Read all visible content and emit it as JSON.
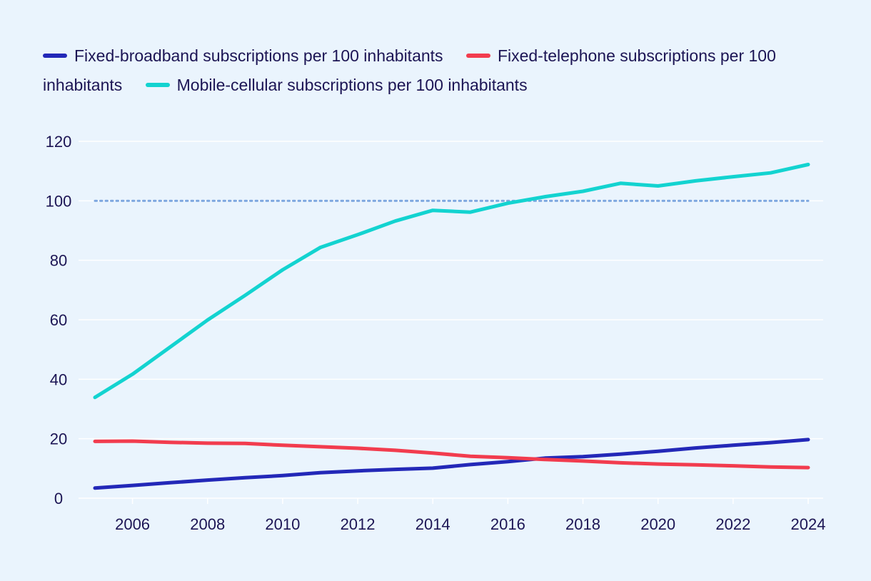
{
  "chart_data": {
    "type": "line",
    "title": "",
    "xlabel": "",
    "ylabel": "",
    "x": [
      2005,
      2006,
      2007,
      2008,
      2009,
      2010,
      2011,
      2012,
      2013,
      2014,
      2015,
      2016,
      2017,
      2018,
      2019,
      2020,
      2021,
      2022,
      2023,
      2024
    ],
    "xticks": [
      2006,
      2008,
      2010,
      2012,
      2014,
      2016,
      2018,
      2020,
      2022,
      2024
    ],
    "xlim": [
      2004.5,
      2024.4
    ],
    "yticks": [
      0,
      20,
      40,
      60,
      80,
      100,
      120
    ],
    "ylim": [
      0,
      120
    ],
    "grid": true,
    "reference_line": {
      "y": 100,
      "style": "dotted",
      "color": "#7fa8e0"
    },
    "legend_position": "top",
    "series": [
      {
        "name": "Fixed-broadband subscriptions per 100 inhabitants",
        "color": "#2328b8",
        "values": [
          3.4,
          4.3,
          5.2,
          6.1,
          6.9,
          7.6,
          8.6,
          9.2,
          9.7,
          10.1,
          11.3,
          12.3,
          13.5,
          14.0,
          14.8,
          15.8,
          16.9,
          17.8,
          18.7,
          19.7
        ]
      },
      {
        "name": "Fixed-telephone subscriptions per 100 inhabitants",
        "color": "#f23c4e",
        "values": [
          19.1,
          19.2,
          18.8,
          18.5,
          18.4,
          17.8,
          17.3,
          16.8,
          16.1,
          15.2,
          14.1,
          13.6,
          13.0,
          12.5,
          11.9,
          11.5,
          11.2,
          10.9,
          10.5,
          10.3
        ]
      },
      {
        "name": "Mobile-cellular subscriptions per 100 inhabitants",
        "color": "#13d3d0",
        "values": [
          33.9,
          41.7,
          50.8,
          59.9,
          68.2,
          76.8,
          84.3,
          88.6,
          93.2,
          96.8,
          96.2,
          99.2,
          101.4,
          103.2,
          105.9,
          105.0,
          106.7,
          108.1,
          109.4,
          112.2
        ]
      }
    ]
  }
}
